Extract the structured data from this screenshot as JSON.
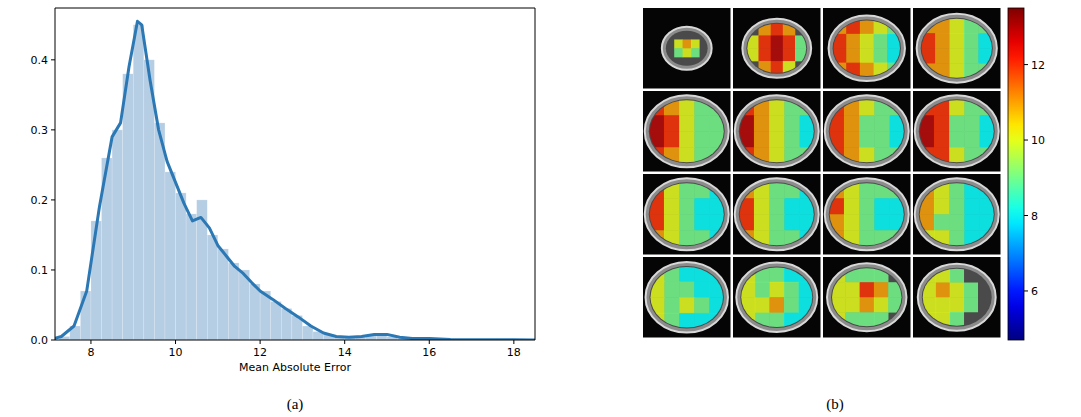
{
  "chart_data": [
    {
      "type": "histogram",
      "xlabel": "Mean Absolute Error",
      "caption": "(a)",
      "color": "#a9c6df",
      "bins": [
        7.25,
        7.5,
        7.75,
        8,
        8.25,
        8.5,
        8.75,
        9,
        9.25,
        9.5,
        9.75,
        10,
        10.25,
        10.5,
        10.75,
        11,
        11.25,
        11.5,
        11.75,
        12,
        12.25,
        12.5,
        12.75,
        13,
        13.25,
        13.5,
        13.75,
        14,
        14.25,
        14.5,
        14.75,
        15,
        15.25,
        15.5,
        15.75,
        16,
        16.25,
        16.5,
        16.75,
        17,
        17.25,
        17.5,
        17.75,
        18,
        18.25
      ],
      "counts": [
        0.005,
        0.02,
        0.07,
        0.17,
        0.26,
        0.3,
        0.38,
        0.45,
        0.4,
        0.31,
        0.24,
        0.21,
        0.18,
        0.2,
        0.15,
        0.13,
        0.11,
        0.1,
        0.08,
        0.07,
        0.055,
        0.045,
        0.035,
        0.02,
        0.012,
        0.008,
        0.005,
        0.004,
        0.004,
        0.007,
        0.009,
        0.005,
        0.002,
        0.001,
        0.002,
        0.001,
        0.0005,
        0.0005,
        0,
        0,
        0,
        0,
        0.0003,
        0
      ],
      "series": [
        {
          "type": "line",
          "color": "#2b78b4",
          "x": [
            7.0,
            7.3,
            7.6,
            7.9,
            8.2,
            8.5,
            8.7,
            8.9,
            9.1,
            9.2,
            9.4,
            9.6,
            9.8,
            10.0,
            10.2,
            10.4,
            10.6,
            10.8,
            11.0,
            11.2,
            11.4,
            11.6,
            11.8,
            12.0,
            12.3,
            12.6,
            12.9,
            13.2,
            13.5,
            13.8,
            14.1,
            14.4,
            14.7,
            15.0,
            15.3,
            15.6,
            16.0,
            16.5,
            17.0,
            17.5,
            18.0,
            18.5
          ],
          "values": [
            0.0,
            0.005,
            0.02,
            0.07,
            0.19,
            0.29,
            0.31,
            0.39,
            0.455,
            0.45,
            0.37,
            0.3,
            0.255,
            0.225,
            0.195,
            0.17,
            0.175,
            0.16,
            0.135,
            0.12,
            0.105,
            0.095,
            0.082,
            0.07,
            0.058,
            0.045,
            0.033,
            0.02,
            0.01,
            0.005,
            0.004,
            0.005,
            0.008,
            0.008,
            0.004,
            0.002,
            0.002,
            0.0008,
            0.0003,
            0.0002,
            0.0002,
            0.0001
          ]
        }
      ],
      "xlim": [
        7.15,
        18.5
      ],
      "ylim": [
        0,
        0.474
      ],
      "xticks": [
        8,
        10,
        12,
        14,
        16,
        18
      ],
      "yticks": [
        {
          "value": 0,
          "label": "0.0"
        },
        0.1,
        0.2,
        0.3,
        0.4
      ]
    },
    {
      "type": "heatmap",
      "caption": "(b)",
      "slices": [
        [
          [
            null,
            null,
            null,
            null,
            null
          ],
          [
            null,
            10,
            11,
            10,
            null
          ],
          [
            null,
            9,
            10,
            9,
            null
          ],
          [
            null,
            null,
            null,
            null,
            null
          ]
        ],
        [
          [
            null,
            11,
            12,
            11,
            null
          ],
          [
            10,
            12,
            13,
            12,
            9
          ],
          [
            10,
            12,
            13,
            12,
            9
          ],
          [
            null,
            11,
            12,
            10,
            null
          ]
        ],
        [
          [
            11,
            12,
            11,
            10,
            9
          ],
          [
            12,
            11,
            10,
            9,
            8
          ],
          [
            12,
            11,
            10,
            9,
            8
          ],
          [
            11,
            12,
            11,
            10,
            9
          ]
        ],
        [
          [
            11,
            11,
            10,
            9,
            9
          ],
          [
            12,
            11,
            10,
            9,
            8
          ],
          [
            12,
            11,
            10,
            9,
            8
          ],
          [
            11,
            11,
            10,
            9,
            9
          ]
        ],
        [
          [
            12,
            11,
            10,
            9,
            9
          ],
          [
            13,
            12,
            10,
            9,
            9
          ],
          [
            13,
            12,
            10,
            9,
            9
          ],
          [
            12,
            11,
            10,
            9,
            9
          ]
        ],
        [
          [
            12,
            11,
            10,
            9,
            9
          ],
          [
            13,
            11,
            10,
            9,
            8
          ],
          [
            13,
            11,
            10,
            9,
            8
          ],
          [
            12,
            11,
            10,
            9,
            9
          ]
        ],
        [
          [
            12,
            11,
            10,
            9,
            9
          ],
          [
            12,
            11,
            9,
            9,
            8
          ],
          [
            12,
            11,
            9,
            9,
            8
          ],
          [
            12,
            11,
            10,
            9,
            9
          ]
        ],
        [
          [
            12,
            12,
            10,
            9,
            9
          ],
          [
            13,
            12,
            9,
            9,
            8
          ],
          [
            13,
            12,
            9,
            9,
            8
          ],
          [
            12,
            12,
            10,
            9,
            9
          ]
        ],
        [
          [
            12,
            10,
            9,
            9,
            8
          ],
          [
            12,
            10,
            9,
            8,
            8
          ],
          [
            12,
            10,
            9,
            8,
            8
          ],
          [
            11,
            10,
            9,
            9,
            8
          ]
        ],
        [
          [
            11,
            10,
            9,
            9,
            8
          ],
          [
            12,
            10,
            9,
            8,
            8
          ],
          [
            12,
            10,
            9,
            8,
            8
          ],
          [
            11,
            10,
            9,
            9,
            8
          ]
        ],
        [
          [
            11,
            10,
            9,
            9,
            9
          ],
          [
            12,
            10,
            9,
            8,
            8
          ],
          [
            11,
            10,
            9,
            8,
            8
          ],
          [
            11,
            10,
            9,
            9,
            9
          ]
        ],
        [
          [
            11,
            10,
            9,
            8,
            8
          ],
          [
            11,
            10,
            9,
            8,
            8
          ],
          [
            11,
            9,
            9,
            8,
            8
          ],
          [
            10,
            10,
            9,
            8,
            8
          ]
        ],
        [
          [
            10,
            9,
            8,
            8,
            8
          ],
          [
            10,
            9,
            9,
            8,
            8
          ],
          [
            10,
            9,
            10,
            9,
            8
          ],
          [
            10,
            9,
            8,
            8,
            8
          ]
        ],
        [
          [
            10,
            9,
            9,
            8,
            8
          ],
          [
            10,
            9,
            10,
            9,
            8
          ],
          [
            10,
            10,
            11,
            9,
            8
          ],
          [
            10,
            9,
            9,
            8,
            8
          ]
        ],
        [
          [
            10,
            9,
            9,
            9,
            null
          ],
          [
            10,
            10,
            12,
            11,
            9
          ],
          [
            10,
            10,
            11,
            10,
            9
          ],
          [
            10,
            9,
            9,
            9,
            null
          ]
        ],
        [
          [
            10,
            10,
            9,
            null,
            null
          ],
          [
            10,
            11,
            10,
            9,
            null
          ],
          [
            10,
            10,
            10,
            9,
            null
          ],
          [
            10,
            10,
            9,
            null,
            null
          ]
        ]
      ],
      "colorbar_range": [
        4.7,
        13.5
      ],
      "colorbar_ticks": [
        6,
        8,
        10,
        12
      ]
    }
  ]
}
